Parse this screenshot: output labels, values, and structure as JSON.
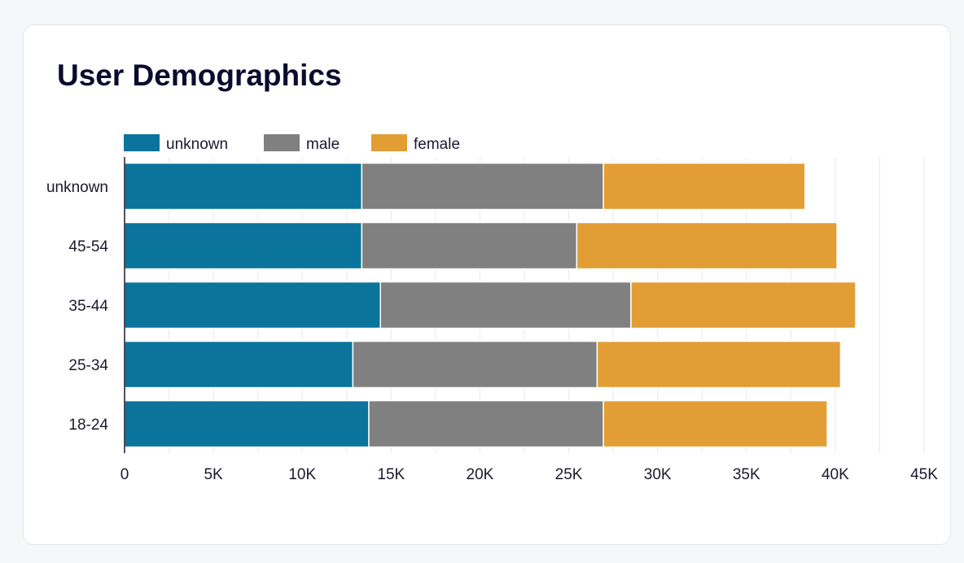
{
  "card": {
    "title": "User Demographics"
  },
  "chart_data": {
    "type": "bar",
    "orientation": "horizontal",
    "stacked": true,
    "title": "User Demographics",
    "categories": [
      "unknown",
      "45-54",
      "35-44",
      "25-34",
      "18-24"
    ],
    "series": [
      {
        "name": "unknown",
        "color": "#0a749c",
        "values": [
          13350,
          13350,
          14400,
          12850,
          13750
        ]
      },
      {
        "name": "male",
        "color": "#808080",
        "values": [
          13600,
          12100,
          14100,
          13750,
          13200
        ]
      },
      {
        "name": "female",
        "color": "#e39d35",
        "values": [
          11350,
          14650,
          12650,
          13700,
          12600
        ]
      }
    ],
    "xlim": [
      0,
      45000
    ],
    "x_ticks": [
      "0",
      "5K",
      "10K",
      "15K",
      "20K",
      "25K",
      "30K",
      "35K",
      "40K",
      "45K"
    ],
    "grid": true,
    "legend_position": "top-left"
  }
}
